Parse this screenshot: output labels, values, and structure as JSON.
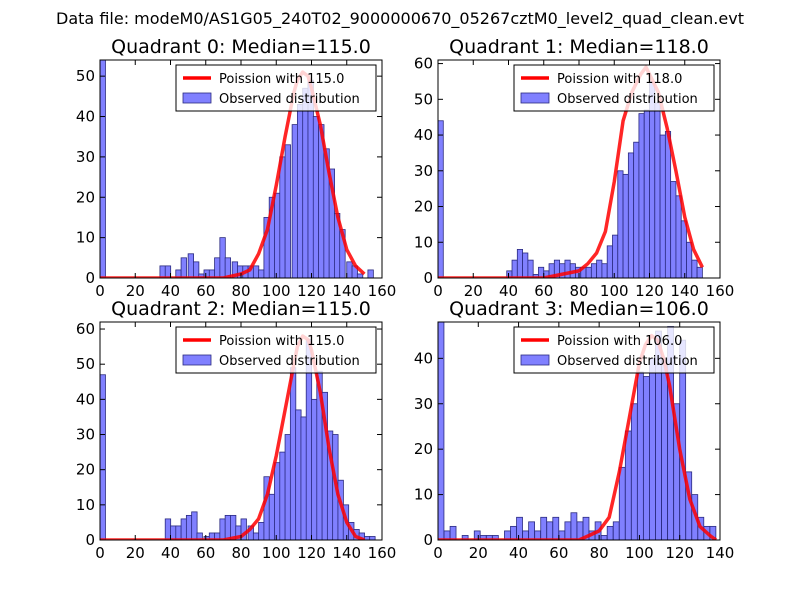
{
  "figure": {
    "suptitle": "Data file: modeM0/AS1G05_240T02_9000000670_05267cztM0_level2_quad_clean.evt"
  },
  "colors": {
    "fit_line": "#ff0000",
    "bar_fill": "#8080ff",
    "bar_edge": "#2a2a80",
    "axes": "#000000"
  },
  "chart_data": [
    {
      "type": "bar",
      "title": "Quadrant 0: Median=115.0",
      "median": 115.0,
      "xlim": [
        0,
        160
      ],
      "ylim": [
        0,
        54
      ],
      "xticks": [
        0,
        20,
        40,
        60,
        80,
        100,
        120,
        140,
        160
      ],
      "yticks": [
        0,
        10,
        20,
        30,
        40,
        50
      ],
      "legend": {
        "position": "upper-right",
        "line_label": "Poission with 115.0",
        "bar_label": "Observed distribution"
      },
      "bin_width": 3.1,
      "bars": [
        {
          "x": 0,
          "y": 54
        },
        {
          "x": 34,
          "y": 3
        },
        {
          "x": 37,
          "y": 3
        },
        {
          "x": 43,
          "y": 2
        },
        {
          "x": 46,
          "y": 5
        },
        {
          "x": 50,
          "y": 6
        },
        {
          "x": 53,
          "y": 4
        },
        {
          "x": 56,
          "y": 1
        },
        {
          "x": 59,
          "y": 2
        },
        {
          "x": 62,
          "y": 2
        },
        {
          "x": 65,
          "y": 5
        },
        {
          "x": 68,
          "y": 10
        },
        {
          "x": 71,
          "y": 5
        },
        {
          "x": 75,
          "y": 4
        },
        {
          "x": 78,
          "y": 3
        },
        {
          "x": 81,
          "y": 3
        },
        {
          "x": 84,
          "y": 3
        },
        {
          "x": 87,
          "y": 3
        },
        {
          "x": 90,
          "y": 2
        },
        {
          "x": 93,
          "y": 15
        },
        {
          "x": 96,
          "y": 20
        },
        {
          "x": 99,
          "y": 21
        },
        {
          "x": 102,
          "y": 30
        },
        {
          "x": 105,
          "y": 33
        },
        {
          "x": 109,
          "y": 38
        },
        {
          "x": 112,
          "y": 43
        },
        {
          "x": 115,
          "y": 47
        },
        {
          "x": 118,
          "y": 49
        },
        {
          "x": 121,
          "y": 40
        },
        {
          "x": 124,
          "y": 38
        },
        {
          "x": 127,
          "y": 32
        },
        {
          "x": 130,
          "y": 27
        },
        {
          "x": 133,
          "y": 16
        },
        {
          "x": 136,
          "y": 12
        },
        {
          "x": 140,
          "y": 4
        },
        {
          "x": 143,
          "y": 3
        },
        {
          "x": 146,
          "y": 1
        },
        {
          "x": 149,
          "y": 0
        },
        {
          "x": 152,
          "y": 2
        }
      ],
      "fit": {
        "x": [
          0,
          30,
          60,
          70,
          80,
          85,
          90,
          95,
          100,
          105,
          110,
          112,
          115,
          118,
          120,
          125,
          130,
          135,
          140,
          145,
          150
        ],
        "y": [
          0,
          0,
          0,
          0,
          1,
          2,
          6,
          12,
          23,
          35,
          46,
          49,
          51,
          50,
          47,
          38,
          26,
          15,
          7,
          3,
          1
        ]
      }
    },
    {
      "type": "bar",
      "title": "Quadrant 1: Median=118.0",
      "median": 118.0,
      "xlim": [
        0,
        160
      ],
      "ylim": [
        0,
        61
      ],
      "xticks": [
        0,
        20,
        40,
        60,
        80,
        100,
        120,
        140,
        160
      ],
      "yticks": [
        0,
        10,
        20,
        30,
        40,
        50,
        60
      ],
      "legend": {
        "position": "upper-right",
        "line_label": "Poission with 118.0",
        "bar_label": "Observed distribution"
      },
      "bin_width": 3.0,
      "bars": [
        {
          "x": 0,
          "y": 44
        },
        {
          "x": 39,
          "y": 2
        },
        {
          "x": 42,
          "y": 5
        },
        {
          "x": 45,
          "y": 8
        },
        {
          "x": 48,
          "y": 7
        },
        {
          "x": 51,
          "y": 5
        },
        {
          "x": 54,
          "y": 1
        },
        {
          "x": 57,
          "y": 3
        },
        {
          "x": 60,
          "y": 2
        },
        {
          "x": 63,
          "y": 4
        },
        {
          "x": 66,
          "y": 5
        },
        {
          "x": 69,
          "y": 4
        },
        {
          "x": 72,
          "y": 5
        },
        {
          "x": 75,
          "y": 4
        },
        {
          "x": 78,
          "y": 3
        },
        {
          "x": 81,
          "y": 3
        },
        {
          "x": 84,
          "y": 3
        },
        {
          "x": 87,
          "y": 4
        },
        {
          "x": 90,
          "y": 5
        },
        {
          "x": 93,
          "y": 4
        },
        {
          "x": 96,
          "y": 9
        },
        {
          "x": 99,
          "y": 12
        },
        {
          "x": 102,
          "y": 30
        },
        {
          "x": 105,
          "y": 29
        },
        {
          "x": 108,
          "y": 35
        },
        {
          "x": 111,
          "y": 38
        },
        {
          "x": 114,
          "y": 46
        },
        {
          "x": 117,
          "y": 47
        },
        {
          "x": 120,
          "y": 55
        },
        {
          "x": 123,
          "y": 49
        },
        {
          "x": 126,
          "y": 40
        },
        {
          "x": 129,
          "y": 41
        },
        {
          "x": 132,
          "y": 27
        },
        {
          "x": 135,
          "y": 23
        },
        {
          "x": 138,
          "y": 16
        },
        {
          "x": 141,
          "y": 10
        },
        {
          "x": 144,
          "y": 5
        },
        {
          "x": 147,
          "y": 3
        }
      ],
      "fit": {
        "x": [
          0,
          30,
          50,
          60,
          70,
          80,
          85,
          90,
          95,
          100,
          105,
          110,
          115,
          118,
          120,
          125,
          130,
          135,
          140,
          145,
          150
        ],
        "y": [
          0,
          0,
          0,
          0,
          1,
          2,
          4,
          7,
          13,
          27,
          44,
          52,
          57,
          59,
          57,
          52,
          42,
          30,
          17,
          8,
          3
        ]
      }
    },
    {
      "type": "bar",
      "title": "Quadrant 2: Median=115.0",
      "median": 115.0,
      "xlim": [
        0,
        160
      ],
      "ylim": [
        0,
        62
      ],
      "xticks": [
        0,
        20,
        40,
        60,
        80,
        100,
        120,
        140,
        160
      ],
      "yticks": [
        0,
        10,
        20,
        30,
        40,
        50,
        60
      ],
      "legend": {
        "position": "upper-right",
        "line_label": "Poission with 115.0",
        "bar_label": "Observed distribution"
      },
      "bin_width": 3.1,
      "bars": [
        {
          "x": 0,
          "y": 47
        },
        {
          "x": 37,
          "y": 6
        },
        {
          "x": 40,
          "y": 4
        },
        {
          "x": 43,
          "y": 4
        },
        {
          "x": 46,
          "y": 6
        },
        {
          "x": 49,
          "y": 7
        },
        {
          "x": 52,
          "y": 8
        },
        {
          "x": 55,
          "y": 2
        },
        {
          "x": 59,
          "y": 1
        },
        {
          "x": 62,
          "y": 2
        },
        {
          "x": 65,
          "y": 2
        },
        {
          "x": 68,
          "y": 6
        },
        {
          "x": 71,
          "y": 7
        },
        {
          "x": 74,
          "y": 7
        },
        {
          "x": 77,
          "y": 4
        },
        {
          "x": 80,
          "y": 6
        },
        {
          "x": 84,
          "y": 4
        },
        {
          "x": 87,
          "y": 2
        },
        {
          "x": 90,
          "y": 5
        },
        {
          "x": 93,
          "y": 18
        },
        {
          "x": 96,
          "y": 13
        },
        {
          "x": 99,
          "y": 22
        },
        {
          "x": 102,
          "y": 25
        },
        {
          "x": 105,
          "y": 30
        },
        {
          "x": 108,
          "y": 49
        },
        {
          "x": 111,
          "y": 37
        },
        {
          "x": 114,
          "y": 35
        },
        {
          "x": 117,
          "y": 57
        },
        {
          "x": 120,
          "y": 40
        },
        {
          "x": 123,
          "y": 48
        },
        {
          "x": 126,
          "y": 42
        },
        {
          "x": 129,
          "y": 31
        },
        {
          "x": 132,
          "y": 30
        },
        {
          "x": 135,
          "y": 17
        },
        {
          "x": 138,
          "y": 10
        },
        {
          "x": 141,
          "y": 5
        },
        {
          "x": 144,
          "y": 3
        },
        {
          "x": 147,
          "y": 2
        },
        {
          "x": 150,
          "y": 1
        },
        {
          "x": 153,
          "y": 1
        }
      ],
      "fit": {
        "x": [
          0,
          40,
          60,
          70,
          80,
          85,
          90,
          95,
          100,
          105,
          110,
          112,
          115,
          118,
          120,
          125,
          130,
          135,
          140,
          145,
          150
        ],
        "y": [
          0,
          0,
          0,
          0,
          1,
          3,
          6,
          13,
          24,
          37,
          50,
          55,
          58,
          57,
          54,
          42,
          26,
          13,
          5,
          1,
          0
        ]
      }
    },
    {
      "type": "bar",
      "title": "Quadrant 3: Median=106.0",
      "median": 106.0,
      "xlim": [
        0,
        140
      ],
      "ylim": [
        0,
        48
      ],
      "xticks": [
        0,
        20,
        40,
        60,
        80,
        100,
        120,
        140
      ],
      "yticks": [
        0,
        10,
        20,
        30,
        40
      ],
      "legend": {
        "position": "upper-right",
        "line_label": "Poission with 106.0",
        "bar_label": "Observed distribution"
      },
      "bin_width": 2.95,
      "bars": [
        {
          "x": 0,
          "y": 48
        },
        {
          "x": 3,
          "y": 2
        },
        {
          "x": 6,
          "y": 3
        },
        {
          "x": 9,
          "y": 0
        },
        {
          "x": 12,
          "y": 1
        },
        {
          "x": 15,
          "y": 0
        },
        {
          "x": 18,
          "y": 2
        },
        {
          "x": 21,
          "y": 1
        },
        {
          "x": 24,
          "y": 1
        },
        {
          "x": 27,
          "y": 1
        },
        {
          "x": 30,
          "y": 0
        },
        {
          "x": 33,
          "y": 2
        },
        {
          "x": 36,
          "y": 3
        },
        {
          "x": 39,
          "y": 5
        },
        {
          "x": 42,
          "y": 2
        },
        {
          "x": 45,
          "y": 4
        },
        {
          "x": 48,
          "y": 2
        },
        {
          "x": 51,
          "y": 5
        },
        {
          "x": 54,
          "y": 4
        },
        {
          "x": 57,
          "y": 5
        },
        {
          "x": 60,
          "y": 2
        },
        {
          "x": 63,
          "y": 4
        },
        {
          "x": 66,
          "y": 6
        },
        {
          "x": 69,
          "y": 4
        },
        {
          "x": 72,
          "y": 5
        },
        {
          "x": 75,
          "y": 2
        },
        {
          "x": 78,
          "y": 4
        },
        {
          "x": 81,
          "y": 1
        },
        {
          "x": 84,
          "y": 3
        },
        {
          "x": 87,
          "y": 4
        },
        {
          "x": 90,
          "y": 16
        },
        {
          "x": 93,
          "y": 24
        },
        {
          "x": 96,
          "y": 30
        },
        {
          "x": 99,
          "y": 37
        },
        {
          "x": 102,
          "y": 36
        },
        {
          "x": 105,
          "y": 40
        },
        {
          "x": 108,
          "y": 46
        },
        {
          "x": 111,
          "y": 40
        },
        {
          "x": 114,
          "y": 47
        },
        {
          "x": 117,
          "y": 30
        },
        {
          "x": 120,
          "y": 44
        },
        {
          "x": 123,
          "y": 15
        },
        {
          "x": 126,
          "y": 10
        },
        {
          "x": 129,
          "y": 5
        },
        {
          "x": 132,
          "y": 3
        },
        {
          "x": 135,
          "y": 3
        }
      ],
      "fit": {
        "x": [
          0,
          30,
          50,
          60,
          70,
          75,
          80,
          85,
          90,
          95,
          100,
          103,
          106,
          109,
          112,
          115,
          120,
          125,
          130,
          135,
          138
        ],
        "y": [
          0,
          0,
          0,
          0,
          0,
          1,
          2,
          5,
          15,
          27,
          39,
          43,
          45,
          44,
          40,
          34,
          20,
          9,
          3,
          1,
          0
        ]
      }
    }
  ]
}
